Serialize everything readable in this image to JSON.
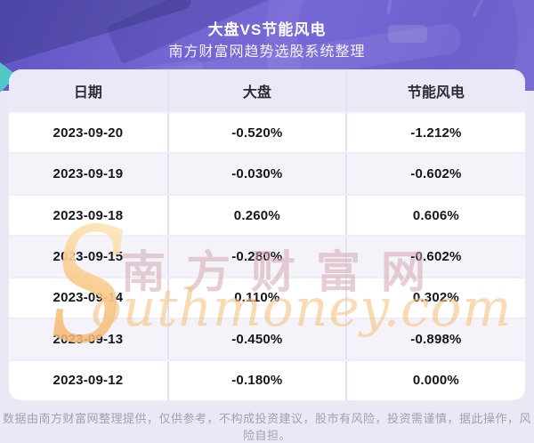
{
  "page": {
    "title": "大盘VS节能风电",
    "subtitle": "南方财富网趋势选股系统整理"
  },
  "chart_data": {
    "type": "table",
    "title": "大盘VS节能风电",
    "subtitle": "南方财富网趋势选股系统整理",
    "columns": [
      "日期",
      "大盘",
      "节能风电"
    ],
    "rows": [
      [
        "2023-09-20",
        "-0.520%",
        "-1.212%"
      ],
      [
        "2023-09-19",
        "-0.030%",
        "-0.602%"
      ],
      [
        "2023-09-18",
        "0.260%",
        "0.606%"
      ],
      [
        "2023-09-15",
        "-0.280%",
        "-0.602%"
      ],
      [
        "2023-09-14",
        "0.110%",
        "0.302%"
      ],
      [
        "2023-09-13",
        "-0.450%",
        "-0.898%"
      ],
      [
        "2023-09-12",
        "-0.180%",
        "0.000%"
      ]
    ]
  },
  "watermark": {
    "cn": "南方财富网",
    "en_initial": "S",
    "en_rest": "outhmoney.com"
  },
  "footer": {
    "disclaimer": "数据由南方财富网整理提供，仅供参考，不构成投资建议，股市有风险，投资需谨慎，据此操作，风险自担。"
  },
  "colors": {
    "hero_purple": "#6f63d1",
    "header_row_bg": "#ebe8f7",
    "alt_row_bg": "#f5f3fa",
    "watermark_pink": "#d3a6ae",
    "watermark_orange": "#f6c482",
    "teal_accent": "#4fc8c6"
  }
}
